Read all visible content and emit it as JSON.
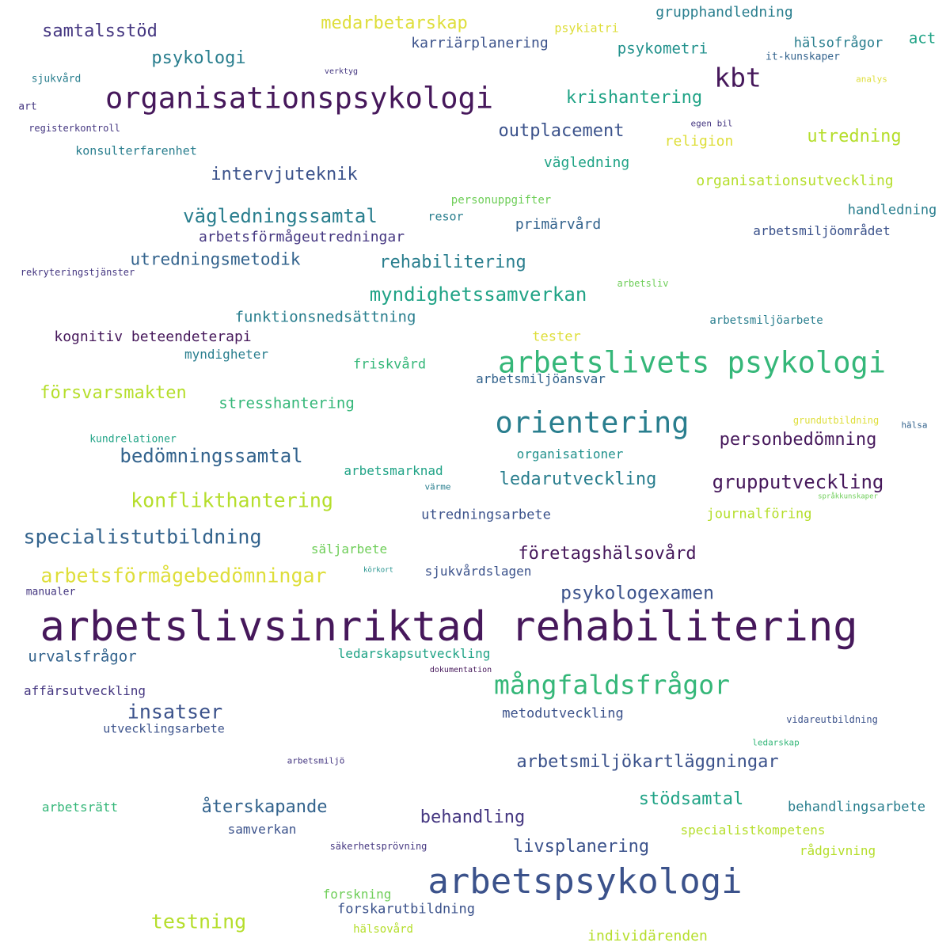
{
  "palette": {
    "dp": "#46185b",
    "pu": "#453781",
    "bl": "#3b528b",
    "sb": "#33638d",
    "te": "#297e8e",
    "tg": "#21918c",
    "gt": "#20a386",
    "gr": "#35b779",
    "lg": "#6ece58",
    "yg": "#b5de2b",
    "ye": "#dede3a"
  },
  "words": [
    {
      "text": "arbetslivsinriktad rehabilitering",
      "color": "dp"
    },
    {
      "text": "arbetspsykologi",
      "color": "bl"
    },
    {
      "text": "organisationspsykologi",
      "color": "dp"
    },
    {
      "text": "arbetslivets psykologi",
      "color": "gr"
    },
    {
      "text": "orientering",
      "color": "te"
    },
    {
      "text": "mångfaldsfrågor",
      "color": "gr"
    },
    {
      "text": "kbt",
      "color": "dp"
    },
    {
      "text": "arbetsförmågebedömningar",
      "color": "ye"
    },
    {
      "text": "specialistutbildning",
      "color": "sb"
    },
    {
      "text": "konflikthantering",
      "color": "yg"
    },
    {
      "text": "bedömningssamtal",
      "color": "sb"
    },
    {
      "text": "grupputveckling",
      "color": "dp"
    },
    {
      "text": "personbedömning",
      "color": "dp"
    },
    {
      "text": "vägledningssamtal",
      "color": "te"
    },
    {
      "text": "myndighetssamverkan",
      "color": "gt"
    },
    {
      "text": "psykologexamen",
      "color": "bl"
    },
    {
      "text": "arbetsmiljökartläggningar",
      "color": "bl"
    },
    {
      "text": "företagshälsovård",
      "color": "dp"
    },
    {
      "text": "testning",
      "color": "yg"
    },
    {
      "text": "insatser",
      "color": "bl"
    },
    {
      "text": "ledarutveckling",
      "color": "te"
    },
    {
      "text": "rehabilitering",
      "color": "te"
    },
    {
      "text": "försvarsmakten",
      "color": "yg"
    },
    {
      "text": "medarbetarskap",
      "color": "ye"
    },
    {
      "text": "intervjuteknik",
      "color": "bl"
    },
    {
      "text": "återskapande",
      "color": "sb"
    },
    {
      "text": "livsplanering",
      "color": "bl"
    },
    {
      "text": "stödsamtal",
      "color": "gt"
    },
    {
      "text": "behandling",
      "color": "pu"
    },
    {
      "text": "samtalsstöd",
      "color": "pu"
    },
    {
      "text": "psykologi",
      "color": "te"
    },
    {
      "text": "krishantering",
      "color": "gt"
    },
    {
      "text": "outplacement",
      "color": "bl"
    },
    {
      "text": "utredning",
      "color": "yg"
    },
    {
      "text": "urvalsfrågor",
      "color": "sb"
    },
    {
      "text": "utredningsmetodik",
      "color": "sb"
    },
    {
      "text": "stresshantering",
      "color": "gr"
    },
    {
      "text": "arbetsförmågeutredningar",
      "color": "pu"
    },
    {
      "text": "funktionsnedsättning",
      "color": "te"
    },
    {
      "text": "kognitiv beteendeterapi",
      "color": "dp"
    },
    {
      "text": "act",
      "color": "gt"
    },
    {
      "text": "psykometri",
      "color": "tg"
    },
    {
      "text": "karriärplanering",
      "color": "bl"
    },
    {
      "text": "grupphandledning",
      "color": "te"
    },
    {
      "text": "vägledning",
      "color": "gt"
    },
    {
      "text": "organisationsutveckling",
      "color": "yg"
    },
    {
      "text": "primärvård",
      "color": "sb"
    },
    {
      "text": "handledning",
      "color": "te"
    },
    {
      "text": "arbetsmiljöområdet",
      "color": "bl"
    },
    {
      "text": "religion",
      "color": "ye"
    },
    {
      "text": "hälsofrågor",
      "color": "te"
    },
    {
      "text": "organisationer",
      "color": "tg"
    },
    {
      "text": "utredningsarbete",
      "color": "bl"
    },
    {
      "text": "behandlingsarbete",
      "color": "te"
    },
    {
      "text": "specialistkompetens",
      "color": "yg"
    },
    {
      "text": "metodutveckling",
      "color": "bl"
    },
    {
      "text": "ledarskapsutveckling",
      "color": "gt"
    },
    {
      "text": "sjukvårdslagen",
      "color": "bl"
    },
    {
      "text": "journalföring",
      "color": "yg"
    },
    {
      "text": "arbetsmarknad",
      "color": "gt"
    },
    {
      "text": "tester",
      "color": "ye"
    },
    {
      "text": "friskvård",
      "color": "gr"
    },
    {
      "text": "myndigheter",
      "color": "te"
    },
    {
      "text": "arbetsmiljöansvar",
      "color": "sb"
    },
    {
      "text": "affärsutveckling",
      "color": "pu"
    },
    {
      "text": "utvecklingsarbete",
      "color": "bl"
    },
    {
      "text": "samverkan",
      "color": "bl"
    },
    {
      "text": "forskarutbildning",
      "color": "bl"
    },
    {
      "text": "forskning",
      "color": "lg"
    },
    {
      "text": "individärenden",
      "color": "yg"
    },
    {
      "text": "rådgivning",
      "color": "yg"
    },
    {
      "text": "arbetsrätt",
      "color": "gr"
    },
    {
      "text": "säljarbete",
      "color": "lg"
    },
    {
      "text": "hälsovård",
      "color": "yg"
    },
    {
      "text": "konsulterfarenhet",
      "color": "te"
    },
    {
      "text": "resor",
      "color": "te"
    },
    {
      "text": "psykiatri",
      "color": "ye"
    },
    {
      "text": "it-kunskaper",
      "color": "sb"
    },
    {
      "text": "arbetsmiljöarbete",
      "color": "te"
    },
    {
      "text": "kundrelationer",
      "color": "gt"
    },
    {
      "text": "vidareutbildning",
      "color": "bl"
    },
    {
      "text": "sjukvård",
      "color": "te"
    },
    {
      "text": "art",
      "color": "pu"
    },
    {
      "text": "registerkontroll",
      "color": "pu"
    },
    {
      "text": "rekryteringstjänster",
      "color": "pu"
    },
    {
      "text": "manualer",
      "color": "pu"
    },
    {
      "text": "personuppgifter",
      "color": "lg"
    },
    {
      "text": "arbetsliv",
      "color": "lg"
    },
    {
      "text": "egen bil",
      "color": "pu"
    },
    {
      "text": "hälsa",
      "color": "sb"
    },
    {
      "text": "grundutbildning",
      "color": "ye"
    },
    {
      "text": "analys",
      "color": "ye"
    },
    {
      "text": "verktyg",
      "color": "pu"
    },
    {
      "text": "värme",
      "color": "te"
    },
    {
      "text": "språkkunskaper",
      "color": "lg"
    },
    {
      "text": "körkort",
      "color": "tg"
    },
    {
      "text": "dokumentation",
      "color": "dp"
    },
    {
      "text": "arbetsmiljö",
      "color": "pu"
    },
    {
      "text": "ledarskap",
      "color": "gr"
    },
    {
      "text": "säkerhetsprövning",
      "color": "pu"
    }
  ]
}
